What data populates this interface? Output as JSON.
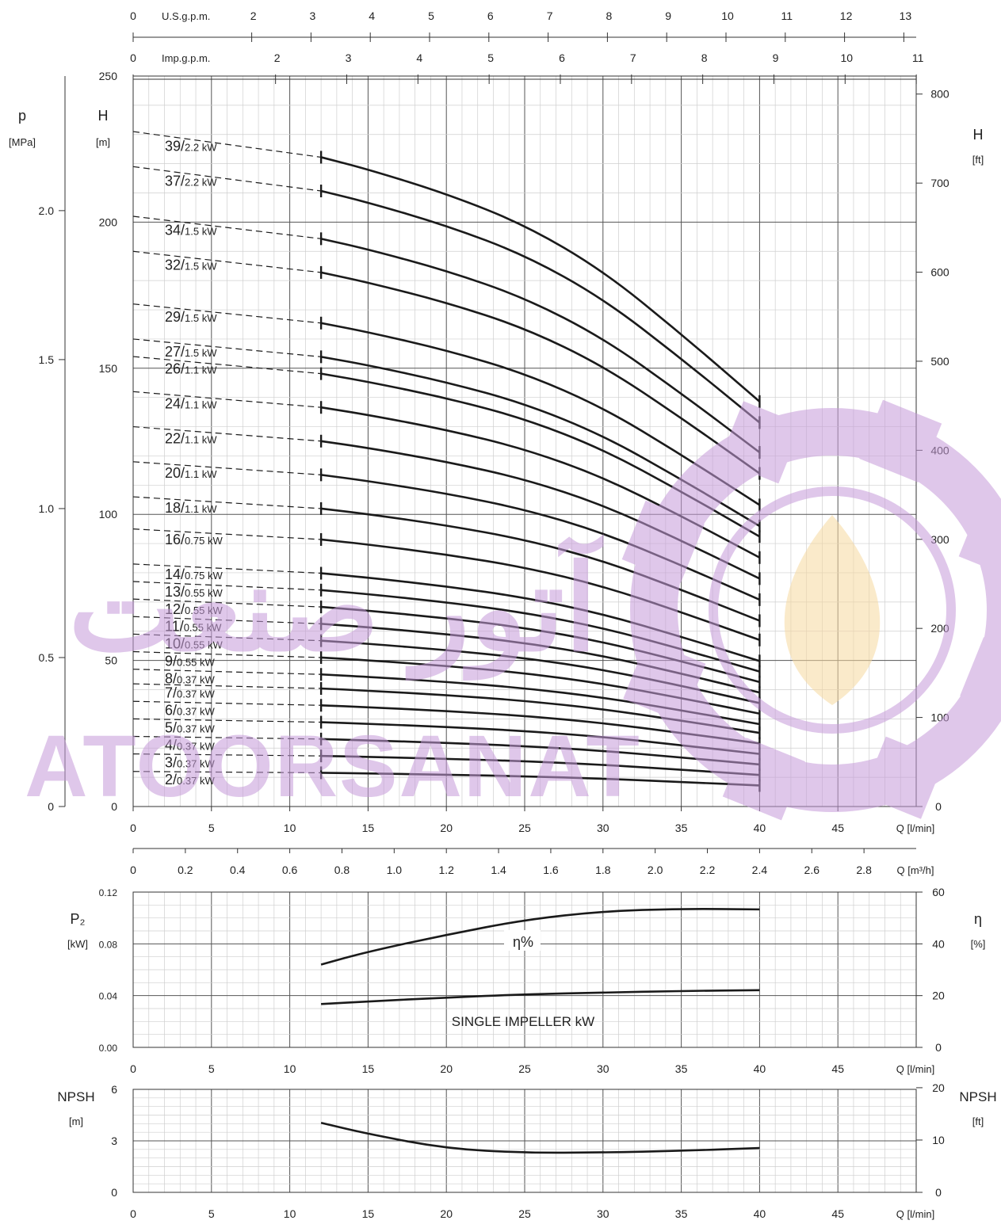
{
  "chart_data": [
    {
      "type": "line",
      "panel": "head",
      "xlabel": "Q [l/min]",
      "ylabel_left": "H",
      "ylabel_left_unit": "[m]",
      "ylabel_right": "H",
      "ylabel_right_unit": "[ft]",
      "pressure_label": "p",
      "pressure_unit": "[MPa]",
      "xlim": [
        0,
        50
      ],
      "ylim": [
        0,
        250
      ],
      "x_ticks": [
        0,
        5,
        10,
        15,
        20,
        25,
        30,
        35,
        40,
        45
      ],
      "y_ticks": [
        0,
        50,
        100,
        150,
        200,
        250
      ],
      "y_ticks_ft": [
        0,
        100,
        200,
        300,
        400,
        500,
        600,
        700,
        800
      ],
      "pressure_ticks": [
        "0",
        "0.5",
        "1.0",
        "1.5",
        "2.0"
      ],
      "pressure_values": [
        0,
        0.5,
        1.0,
        1.5,
        2.0
      ],
      "usgpm_label": "U.S.g.p.m.",
      "usgpm_ticks": [
        0,
        2,
        3,
        4,
        5,
        6,
        7,
        8,
        9,
        10,
        11,
        12,
        13
      ],
      "impgpm_label": "Imp.g.p.m.",
      "impgpm_ticks": [
        0,
        2,
        3,
        4,
        5,
        6,
        7,
        8,
        9,
        10,
        11
      ],
      "m3h_label": "Q [m³/h]",
      "m3h_ticks": [
        "0",
        "0.2",
        "0.4",
        "0.6",
        "0.8",
        "1.0",
        "1.2",
        "1.4",
        "1.6",
        "1.8",
        "2.0",
        "2.2",
        "2.4",
        "2.6",
        "2.8"
      ],
      "m3h_values": [
        0,
        0.2,
        0.4,
        0.6,
        0.8,
        1.0,
        1.2,
        1.4,
        1.6,
        1.8,
        2.0,
        2.2,
        2.4,
        2.6,
        2.8
      ],
      "curve_x": [
        0,
        12,
        15,
        20,
        25,
        30,
        35,
        40
      ],
      "curve_shape": [
        1.0,
        0.962,
        0.944,
        0.908,
        0.862,
        0.794,
        0.7,
        0.6
      ],
      "solid_from": 12,
      "series": [
        {
          "name": "39",
          "kw": "2.2 kW",
          "h0": 231
        },
        {
          "name": "37",
          "kw": "2.2 kW",
          "h0": 219
        },
        {
          "name": "34",
          "kw": "1.5 kW",
          "h0": 202
        },
        {
          "name": "32",
          "kw": "1.5 kW",
          "h0": 190
        },
        {
          "name": "29",
          "kw": "1.5 kW",
          "h0": 172
        },
        {
          "name": "27",
          "kw": "1.5 kW",
          "h0": 160
        },
        {
          "name": "26",
          "kw": "1.1 kW",
          "h0": 154
        },
        {
          "name": "24",
          "kw": "1.1 kW",
          "h0": 142
        },
        {
          "name": "22",
          "kw": "1.1 kW",
          "h0": 130
        },
        {
          "name": "20",
          "kw": "1.1 kW",
          "h0": 118
        },
        {
          "name": "18",
          "kw": "1.1 kW",
          "h0": 106
        },
        {
          "name": "16",
          "kw": "0.75 kW",
          "h0": 95
        },
        {
          "name": "14",
          "kw": "0.75 kW",
          "h0": 83
        },
        {
          "name": "13",
          "kw": "0.55 kW",
          "h0": 77
        },
        {
          "name": "12",
          "kw": "0.55 kW",
          "h0": 71
        },
        {
          "name": "11",
          "kw": "0.55 kW",
          "h0": 65
        },
        {
          "name": "10",
          "kw": "0.55 kW",
          "h0": 59
        },
        {
          "name": "9",
          "kw": "0.55 kW",
          "h0": 53
        },
        {
          "name": "8",
          "kw": "0.37 kW",
          "h0": 47
        },
        {
          "name": "7",
          "kw": "0.37 kW",
          "h0": 42
        },
        {
          "name": "6",
          "kw": "0.37 kW",
          "h0": 36
        },
        {
          "name": "5",
          "kw": "0.37 kW",
          "h0": 30
        },
        {
          "name": "4",
          "kw": "0.37 kW",
          "h0": 24
        },
        {
          "name": "3",
          "kw": "0.37 kW",
          "h0": 18
        },
        {
          "name": "2",
          "kw": "0.37 kW",
          "h0": 12
        }
      ]
    },
    {
      "type": "line",
      "panel": "power",
      "xlabel": "Q [l/min]",
      "ylabel_left": "P₂",
      "ylabel_left_unit": "[kW]",
      "ylabel_right": "η",
      "ylabel_right_unit": "[%]",
      "xlim": [
        0,
        50
      ],
      "ylim": [
        0,
        0.12
      ],
      "y2lim": [
        0,
        60
      ],
      "x_ticks": [
        0,
        5,
        10,
        15,
        20,
        25,
        30,
        35,
        40,
        45
      ],
      "y_ticks": [
        "0.00",
        "0.04",
        "0.08",
        "0.12"
      ],
      "y_values": [
        0,
        0.04,
        0.08,
        0.12
      ],
      "y2_ticks": [
        0,
        20,
        40,
        60
      ],
      "series": [
        {
          "name": "η%",
          "axis": "right",
          "x": [
            12,
            15,
            20,
            25,
            30,
            35,
            40
          ],
          "y": [
            32,
            37,
            43.5,
            49.3,
            52.6,
            53.6,
            53.3
          ]
        },
        {
          "name": "SINGLE IMPELLER kW",
          "axis": "left",
          "x": [
            12,
            15,
            20,
            25,
            30,
            35,
            40
          ],
          "y": [
            0.0335,
            0.0355,
            0.0385,
            0.041,
            0.0423,
            0.0436,
            0.0442
          ]
        }
      ]
    },
    {
      "type": "line",
      "panel": "npsh",
      "xlabel": "Q [l/min]",
      "ylabel_left": "NPSH",
      "ylabel_left_unit": "[m]",
      "ylabel_right": "NPSH",
      "ylabel_right_unit": "[ft]",
      "xlim": [
        0,
        50
      ],
      "ylim": [
        0,
        6
      ],
      "x_ticks": [
        0,
        5,
        10,
        15,
        20,
        25,
        30,
        35,
        40,
        45
      ],
      "y_ticks": [
        0,
        3,
        6
      ],
      "y2_ticks": [
        0,
        10,
        20
      ],
      "series": [
        {
          "name": "NPSH",
          "x": [
            12,
            15,
            20,
            25,
            30,
            35,
            40
          ],
          "y": [
            4.05,
            3.4,
            2.55,
            2.3,
            2.32,
            2.42,
            2.58
          ]
        }
      ]
    }
  ],
  "watermark": {
    "text_latin": "ATOORSANAT",
    "text_persian": "آتور صنعت",
    "color": "#c69bd9",
    "flame_color": "#f7d9a0"
  },
  "colors": {
    "curve": "#1a1a1a",
    "grid_minor": "#cfcfcf",
    "grid_major": "#555555"
  }
}
